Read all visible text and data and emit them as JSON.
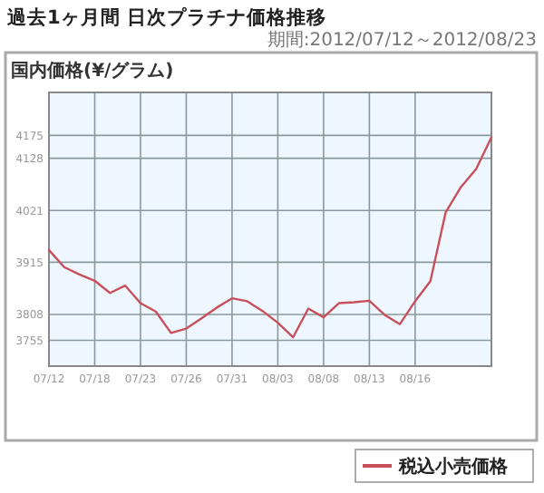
{
  "chart_data": {
    "type": "line",
    "title": "過去1ヶ月間 日次プラチナ価格推移",
    "subtitle": "期間:2012/07/12～2012/08/23",
    "ylabel": "国内価格(¥/グラム)",
    "categories": [
      "07/12",
      null,
      null,
      "07/18",
      null,
      null,
      "07/23",
      null,
      null,
      "07/26",
      null,
      null,
      "07/31",
      null,
      null,
      "08/03",
      null,
      null,
      "08/08",
      null,
      null,
      "08/13",
      null,
      null,
      "08/16",
      null,
      null,
      null,
      null,
      null
    ],
    "series": [
      {
        "name": "税込小売価格",
        "color": "#c8505a",
        "values": [
          3940,
          3905,
          3890,
          3877,
          3852,
          3867,
          3831,
          3814,
          3770,
          3779,
          3800,
          3822,
          3841,
          3835,
          3815,
          3791,
          3761,
          3820,
          3802,
          3831,
          3833,
          3836,
          3807,
          3788,
          3835,
          3876,
          4017,
          4069,
          4106,
          4171
        ]
      }
    ],
    "ylim": [
      3702,
      4263
    ],
    "yticks": [
      3755,
      3808,
      3915,
      4021,
      4128,
      4175
    ],
    "grid": true,
    "legend": "bottom right"
  }
}
